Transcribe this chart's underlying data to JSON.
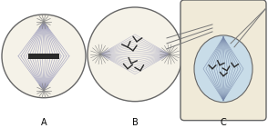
{
  "bg_color": "#f0ece0",
  "cell_bg": "#f5f2e8",
  "cell_border_color": "#666666",
  "spindle_color": "#9999bb",
  "chromosome_color": "#2a2a2a",
  "aster_color": "#888888",
  "rect_bg": "#f0ead8",
  "rect_border": "#666666",
  "inner_cell_color": "#c8dce8",
  "label_a": "A",
  "label_b": "B",
  "label_c": "C",
  "fig_bg": "#ffffff"
}
